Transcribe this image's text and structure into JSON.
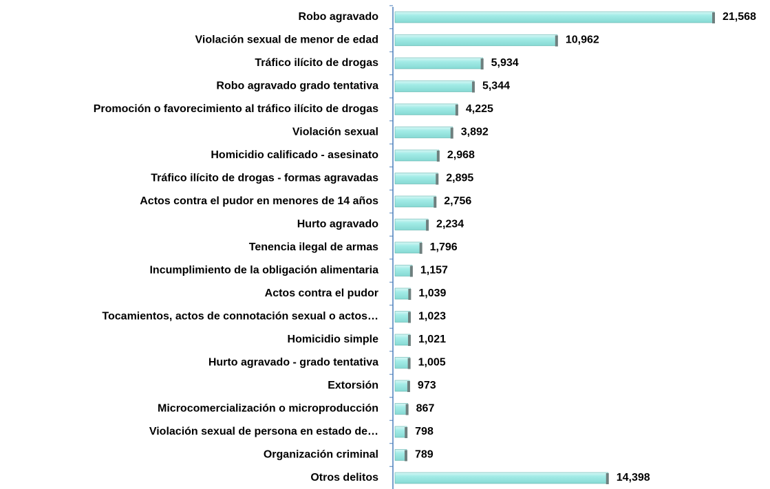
{
  "chart_data": {
    "type": "bar",
    "orientation": "horizontal",
    "categories": [
      "Robo agravado",
      "Violación sexual de menor de edad",
      "Tráfico ilícito de drogas",
      "Robo agravado grado tentativa",
      "Promoción o favorecimiento al tráfico ilícito de drogas",
      "Violación sexual",
      "Homicidio calificado - asesinato",
      "Tráfico ilícito de drogas - formas agravadas",
      "Actos contra el pudor en menores de 14 años",
      "Hurto agravado",
      "Tenencia ilegal de armas",
      "Incumplimiento de la obligación alimentaria",
      "Actos contra el pudor",
      "Tocamientos, actos de connotación sexual o actos…",
      "Homicidio simple",
      "Hurto agravado - grado tentativa",
      "Extorsión",
      "Microcomercialización o microproducción",
      "Violación sexual de persona en estado de…",
      "Organización criminal",
      "Otros delitos"
    ],
    "values": [
      21568,
      10962,
      5934,
      5344,
      4225,
      3892,
      2968,
      2895,
      2756,
      2234,
      1796,
      1157,
      1039,
      1023,
      1021,
      1005,
      973,
      867,
      798,
      789,
      14398
    ],
    "value_labels": [
      "21,568",
      "10,962",
      "5,934",
      "5,344",
      "4,225",
      "3,892",
      "2,968",
      "2,895",
      "2,756",
      "2,234",
      "1,796",
      "1,157",
      "1,039",
      "1,023",
      "1,021",
      "1,005",
      "973",
      "867",
      "798",
      "789",
      "14,398"
    ],
    "color": "#a3ece7"
  }
}
